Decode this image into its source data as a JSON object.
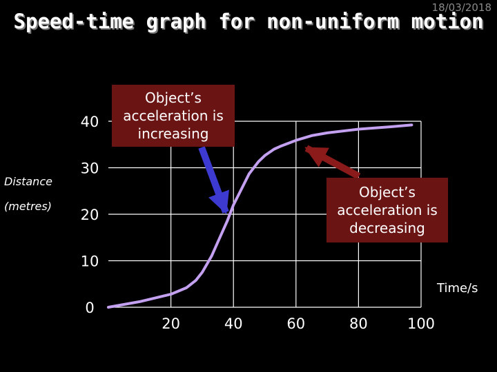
{
  "header": {
    "date": "18/03/2018",
    "title": "Speed-time graph for non-uniform motion"
  },
  "callouts": {
    "left": "Object’s acceleration is increasing",
    "right": "Object’s acceleration is decreasing"
  },
  "colors": {
    "background": "#000000",
    "curve": "#c3a0f0",
    "callout_box": "#6b1414",
    "left_arrow": "#3c3ad0",
    "right_arrow": "#8b1a1a",
    "grid": "#ffffff"
  },
  "chart_data": {
    "type": "line",
    "title": "Speed-time graph for non-uniform motion",
    "ylabel": "Distance (metres)",
    "ylabel_lines": [
      "Distance",
      "(metres)"
    ],
    "xlabel": "Time/s",
    "xlim": [
      0,
      100
    ],
    "ylim": [
      0,
      40
    ],
    "xticks": [
      20,
      40,
      60,
      80,
      100
    ],
    "yticks": [
      0,
      10,
      20,
      30,
      40
    ],
    "grid": true,
    "series": [
      {
        "x": [
          0,
          10,
          20,
          25,
          28,
          30,
          33,
          35,
          38,
          40,
          43,
          45,
          48,
          50,
          53,
          55,
          60,
          65,
          70,
          80,
          90,
          97
        ],
        "y": [
          0,
          1.2,
          2.8,
          4.2,
          5.8,
          7.5,
          11,
          14,
          18.5,
          22,
          26,
          28.7,
          31.3,
          32.6,
          34,
          34.6,
          35.9,
          36.9,
          37.5,
          38.3,
          38.8,
          39.2
        ]
      }
    ],
    "annotations": [
      {
        "text": "Object’s acceleration is increasing",
        "points_to": [
          38,
          19
        ]
      },
      {
        "text": "Object’s acceleration is decreasing",
        "points_to": [
          59,
          35.4
        ]
      }
    ]
  }
}
